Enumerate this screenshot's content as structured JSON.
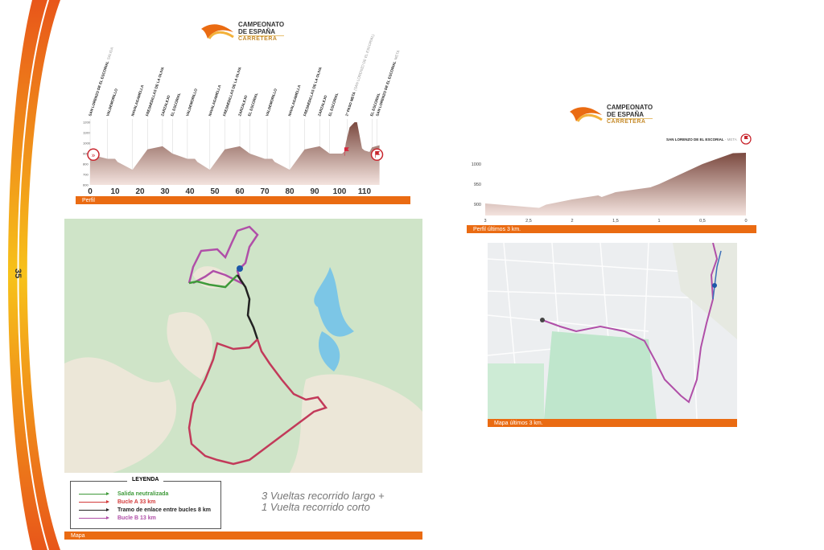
{
  "page_number": "35",
  "logo": {
    "line1": "CAMPEONATO",
    "line2": "DE ESPAÑA",
    "line3": "CARRETERA"
  },
  "profile": {
    "label": "Perfil",
    "x_ticks": [
      0,
      10,
      20,
      30,
      40,
      50,
      60,
      70,
      80,
      90,
      100,
      110
    ],
    "y_ticks": [
      1200,
      1100,
      1000,
      900,
      800,
      700,
      600
    ],
    "points": [
      [
        0,
        890
      ],
      [
        2,
        880
      ],
      [
        7,
        850
      ],
      [
        10,
        850
      ],
      [
        11,
        820
      ],
      [
        17,
        745
      ],
      [
        23,
        940
      ],
      [
        29,
        970
      ],
      [
        33,
        900
      ],
      [
        39,
        850
      ],
      [
        42,
        850
      ],
      [
        43,
        820
      ],
      [
        48,
        745
      ],
      [
        54,
        940
      ],
      [
        60,
        970
      ],
      [
        64,
        900
      ],
      [
        70,
        850
      ],
      [
        73,
        850
      ],
      [
        74,
        820
      ],
      [
        80,
        745
      ],
      [
        86,
        940
      ],
      [
        92,
        970
      ],
      [
        96,
        900
      ],
      [
        101,
        900
      ],
      [
        102,
        920
      ],
      [
        102.5,
        1000
      ],
      [
        104,
        1150
      ],
      [
        106,
        1200
      ],
      [
        107,
        1200
      ],
      [
        109,
        950
      ],
      [
        110,
        930
      ],
      [
        112,
        915
      ],
      [
        113,
        960
      ],
      [
        116,
        980
      ]
    ],
    "locations": [
      {
        "km": 0,
        "name": "SAN LORENZO DE EL ESCORIAL",
        "sub": "SALIDA"
      },
      {
        "km": 7,
        "name": "VALDEMORILLO"
      },
      {
        "km": 17,
        "name": "NAVALAGAMELLA"
      },
      {
        "km": 23,
        "name": "FRESNEDILLAS DE LA OLIVA"
      },
      {
        "km": 29,
        "name": "ZARZALEJO"
      },
      {
        "km": 33,
        "name": "EL ESCORIAL"
      },
      {
        "km": 39,
        "name": "VALDEMORILLO"
      },
      {
        "km": 48,
        "name": "NAVALAGAMELLA"
      },
      {
        "km": 54,
        "name": "FRESNEDILLAS DE LA OLIVA"
      },
      {
        "km": 60,
        "name": "ZARZALEJO"
      },
      {
        "km": 64,
        "name": "EL ESCORIAL"
      },
      {
        "km": 71,
        "name": "VALDEMORILLO"
      },
      {
        "km": 80,
        "name": "NAVALAGAMELLA"
      },
      {
        "km": 86,
        "name": "FRESNEDILLAS DE LA OLIVA"
      },
      {
        "km": 92,
        "name": "ZARZALEJO"
      },
      {
        "km": 96,
        "name": "EL ESCORIAL"
      },
      {
        "km": 103,
        "name": "1º PASO META",
        "sub": "(SAN LORENZO DE EL ESCORIAL)"
      },
      {
        "km": 113,
        "name": "EL ESCORIAL"
      },
      {
        "km": 115,
        "name": "SAN LORENZO DE EL ESCORIAL",
        "sub": "META"
      }
    ]
  },
  "profile_last": {
    "label": "Perfil últimos 3 km.",
    "finish_name": "SAN LORENZO DE EL ESCORIAL",
    "finish_sub": "- META",
    "x_ticks": [
      "3",
      "2,5",
      "2",
      "1,5",
      "1",
      "0,5",
      "0"
    ],
    "y_ticks": [
      1000,
      950,
      900
    ],
    "points": [
      [
        3,
        902
      ],
      [
        2.5,
        893
      ],
      [
        2.38,
        891
      ],
      [
        2.3,
        899
      ],
      [
        2,
        912
      ],
      [
        1.7,
        922
      ],
      [
        1.66,
        918
      ],
      [
        1.5,
        930
      ],
      [
        1.1,
        942
      ],
      [
        1,
        950
      ],
      [
        0.5,
        1000
      ],
      [
        0.15,
        1027
      ],
      [
        0,
        1028
      ]
    ]
  },
  "map": {
    "label": "Mapa"
  },
  "map_last": {
    "label": "Mapa últimos 3 km."
  },
  "legend": {
    "title": "LEYENDA",
    "items": [
      {
        "label": "Salida neutralizada",
        "color": "#3f9a3a"
      },
      {
        "label": "Bucle A 33 km",
        "color": "#d33b3b"
      },
      {
        "label": "Tramo de enlace entre bucles 8 km",
        "color": "#222222"
      },
      {
        "label": "Bucle B 13 km",
        "color": "#b04fa8"
      }
    ]
  },
  "note": {
    "line1": "3 Vueltas recorrido largo +",
    "line2": "1 Vuelta recorrido corto"
  },
  "colors": {
    "accent": "#ea6b12",
    "profile_fill": "#8e5a4f"
  }
}
